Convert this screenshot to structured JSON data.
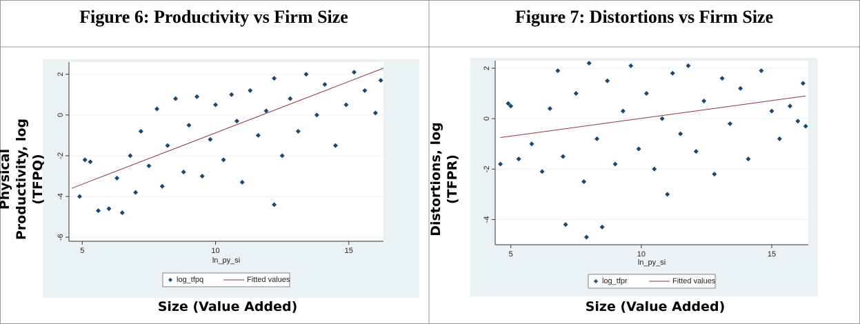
{
  "chart_data": [
    {
      "type": "scatter",
      "title": "Figure 6: Productivity vs Firm Size",
      "y_label": "Physical Productivity, log (TFPQ)",
      "x_label": "Size (Value Added)",
      "inner_x_label": "ln_py_si",
      "xlim": [
        4.5,
        16.3
      ],
      "ylim": [
        -6.2,
        2.6
      ],
      "xticks": [
        5,
        10,
        15
      ],
      "yticks": [
        -6,
        -4,
        -2,
        0,
        2
      ],
      "grid": true,
      "series": [
        {
          "name": "log_tfpq",
          "color": "#1a476f",
          "x": [
            4.9,
            5.1,
            5.3,
            5.6,
            6.0,
            6.3,
            6.5,
            6.8,
            7.0,
            7.2,
            7.5,
            7.8,
            8.0,
            8.2,
            8.5,
            8.8,
            9.0,
            9.3,
            9.5,
            9.8,
            10.0,
            10.3,
            10.6,
            10.8,
            11.0,
            11.3,
            11.6,
            11.9,
            12.2,
            12.5,
            12.8,
            13.1,
            13.4,
            13.8,
            14.1,
            14.5,
            14.9,
            15.2,
            15.6,
            16.0,
            16.2,
            12.2
          ],
          "values": [
            -4.0,
            -2.2,
            -2.3,
            -4.7,
            -4.6,
            -3.1,
            -4.8,
            -2.0,
            -3.8,
            -0.8,
            -2.5,
            0.3,
            -3.5,
            -1.5,
            0.8,
            -2.8,
            -0.5,
            0.9,
            -3.0,
            -1.2,
            0.5,
            -2.2,
            1.0,
            -0.3,
            -3.3,
            1.2,
            -1.0,
            0.2,
            1.8,
            -2.0,
            0.8,
            -0.8,
            2.0,
            0.0,
            1.5,
            -1.5,
            0.5,
            2.1,
            1.2,
            0.1,
            1.7,
            -4.4
          ]
        },
        {
          "name": "Fitted values",
          "type": "line",
          "color": "#90353b",
          "x": [
            4.6,
            16.3
          ],
          "values": [
            -3.6,
            2.3
          ]
        }
      ]
    },
    {
      "type": "scatter",
      "title": "Figure 7: Distortions vs Firm Size",
      "y_label": "Distortions, log (TFPR)",
      "x_label": "Size (Value Added)",
      "inner_x_label": "ln_py_si",
      "xlim": [
        4.4,
        16.4
      ],
      "ylim": [
        -5.0,
        2.3
      ],
      "xticks": [
        5,
        10,
        15
      ],
      "yticks": [
        -4,
        -2,
        0,
        2
      ],
      "grid": true,
      "series": [
        {
          "name": "log_tfpr",
          "color": "#1a476f",
          "x": [
            4.6,
            4.9,
            5.0,
            5.3,
            5.8,
            6.2,
            6.5,
            6.8,
            7.0,
            7.1,
            7.5,
            7.8,
            7.9,
            8.0,
            8.3,
            8.5,
            8.7,
            9.0,
            9.3,
            9.6,
            9.9,
            10.2,
            10.5,
            10.8,
            11.0,
            11.2,
            11.5,
            11.8,
            12.1,
            12.4,
            12.8,
            13.1,
            13.4,
            13.8,
            14.1,
            14.6,
            15.0,
            15.3,
            15.7,
            16.0,
            16.2,
            16.3
          ],
          "values": [
            -1.8,
            0.6,
            0.5,
            -1.6,
            -1.0,
            -2.1,
            0.4,
            1.9,
            -1.5,
            -4.2,
            1.0,
            -2.5,
            -4.7,
            2.2,
            -0.8,
            -4.3,
            1.5,
            -1.8,
            0.3,
            2.1,
            -1.2,
            1.0,
            -2.0,
            0.0,
            -3.0,
            1.8,
            -0.6,
            2.1,
            -1.3,
            0.7,
            -2.2,
            1.6,
            -0.2,
            1.2,
            -1.6,
            1.9,
            0.3,
            -0.8,
            0.5,
            -0.1,
            1.4,
            -0.3
          ]
        },
        {
          "name": "Fitted values",
          "type": "line",
          "color": "#90353b",
          "x": [
            4.6,
            16.3
          ],
          "values": [
            -0.75,
            0.9
          ]
        }
      ]
    }
  ]
}
